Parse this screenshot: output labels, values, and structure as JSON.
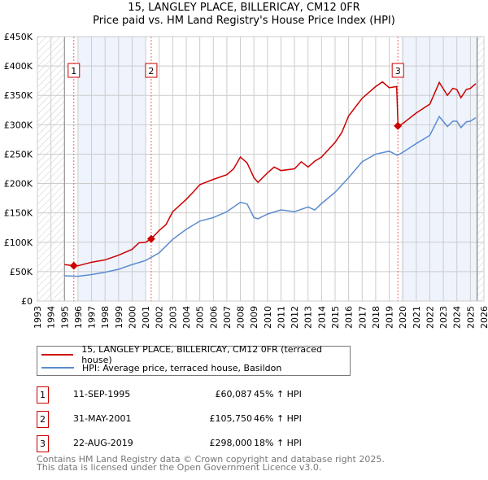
{
  "title": "15, LANGLEY PLACE, BILLERICAY, CM12 0FR",
  "subtitle": "Price paid vs. HM Land Registry's House Price Index (HPI)",
  "chart_data": {
    "type": "line",
    "xlim": [
      1993,
      2026
    ],
    "ylim": [
      0,
      450000
    ],
    "x_ticks": [
      1993,
      1994,
      1995,
      1996,
      1997,
      1998,
      1999,
      2000,
      2001,
      2002,
      2003,
      2004,
      2005,
      2006,
      2007,
      2008,
      2009,
      2010,
      2011,
      2012,
      2013,
      2014,
      2015,
      2016,
      2017,
      2018,
      2019,
      2020,
      2021,
      2022,
      2023,
      2024,
      2025,
      2026
    ],
    "y_ticks": [
      0,
      50000,
      100000,
      150000,
      200000,
      250000,
      300000,
      350000,
      400000,
      450000
    ],
    "y_tick_labels": [
      "£0",
      "£50K",
      "£100K",
      "£150K",
      "£200K",
      "£250K",
      "£300K",
      "£350K",
      "£400K",
      "£450K"
    ],
    "grid": true,
    "series": [
      {
        "name": "15, LANGLEY PLACE, BILLERICAY, CM12 0FR (terraced house)",
        "color": "#cc0000",
        "x": [
          1995,
          1995.7,
          1996,
          1997,
          1998,
          1999,
          2000,
          2000.5,
          2001,
          2001.4,
          2002,
          2002.5,
          2003,
          2004,
          2004.5,
          2005,
          2006,
          2007,
          2007.5,
          2008,
          2008.5,
          2009,
          2009.3,
          2010,
          2010.5,
          2011,
          2012,
          2012.5,
          2013,
          2013.5,
          2014,
          2015,
          2015.5,
          2016,
          2017,
          2017.5,
          2018,
          2018.5,
          2019,
          2019.55,
          2019.65,
          2020,
          2021,
          2022,
          2022.7,
          2023.3,
          2023.7,
          2024,
          2024.3,
          2024.7,
          2025,
          2025.4
        ],
        "y": [
          62000,
          60087,
          60000,
          66000,
          70000,
          78000,
          88000,
          99000,
          100000,
          105750,
          120000,
          130000,
          152000,
          173000,
          185000,
          198000,
          207000,
          215000,
          225000,
          245000,
          235000,
          210000,
          202000,
          218000,
          228000,
          222000,
          225000,
          237000,
          228000,
          238000,
          245000,
          270000,
          287000,
          315000,
          345000,
          355000,
          365000,
          373000,
          363000,
          365000,
          298000,
          302000,
          320000,
          335000,
          372000,
          350000,
          362000,
          360000,
          346000,
          360000,
          362000,
          370000
        ]
      },
      {
        "name": "HPI: Average price, terraced house, Basildon",
        "color": "#5b8bd0",
        "x": [
          1995,
          1996,
          1997,
          1998,
          1999,
          2000,
          2001,
          2002,
          2003,
          2004,
          2005,
          2006,
          2007,
          2008,
          2008.5,
          2009,
          2009.3,
          2010,
          2011,
          2012,
          2013,
          2013.5,
          2014,
          2015,
          2016,
          2017,
          2018,
          2019,
          2019.6,
          2020,
          2021,
          2022,
          2022.7,
          2023.3,
          2023.7,
          2024,
          2024.3,
          2024.7,
          2025,
          2025.4
        ],
        "y": [
          43000,
          42000,
          45000,
          49000,
          54000,
          62000,
          69000,
          82000,
          105000,
          122000,
          136000,
          142000,
          152000,
          168000,
          165000,
          142000,
          140000,
          148000,
          155000,
          152000,
          160000,
          155000,
          166000,
          185000,
          210000,
          237000,
          250000,
          255000,
          248000,
          253000,
          268000,
          282000,
          314000,
          297000,
          306000,
          306000,
          295000,
          305000,
          306000,
          312000
        ]
      }
    ],
    "sales": [
      {
        "label": "1",
        "x": 1995.69,
        "y": 60087,
        "date": "11-SEP-1995",
        "price": "£60,087",
        "hpi": "45% ↑ HPI"
      },
      {
        "label": "2",
        "x": 2001.41,
        "y": 105750,
        "date": "31-MAY-2001",
        "price": "£105,750",
        "hpi": "46% ↑ HPI"
      },
      {
        "label": "3",
        "x": 2019.64,
        "y": 298000,
        "date": "22-AUG-2019",
        "price": "£298,000",
        "hpi": "18% ↑ HPI"
      }
    ],
    "shaded_ranges": [
      [
        1996,
        2001
      ],
      [
        2019.9,
        2025.5
      ]
    ],
    "hatched_ranges": [
      [
        1993,
        1995
      ],
      [
        2025.5,
        2026
      ]
    ]
  },
  "footer": {
    "line1": "Contains HM Land Registry data © Crown copyright and database right 2025.",
    "line2": "This data is licensed under the Open Government Licence v3.0."
  }
}
